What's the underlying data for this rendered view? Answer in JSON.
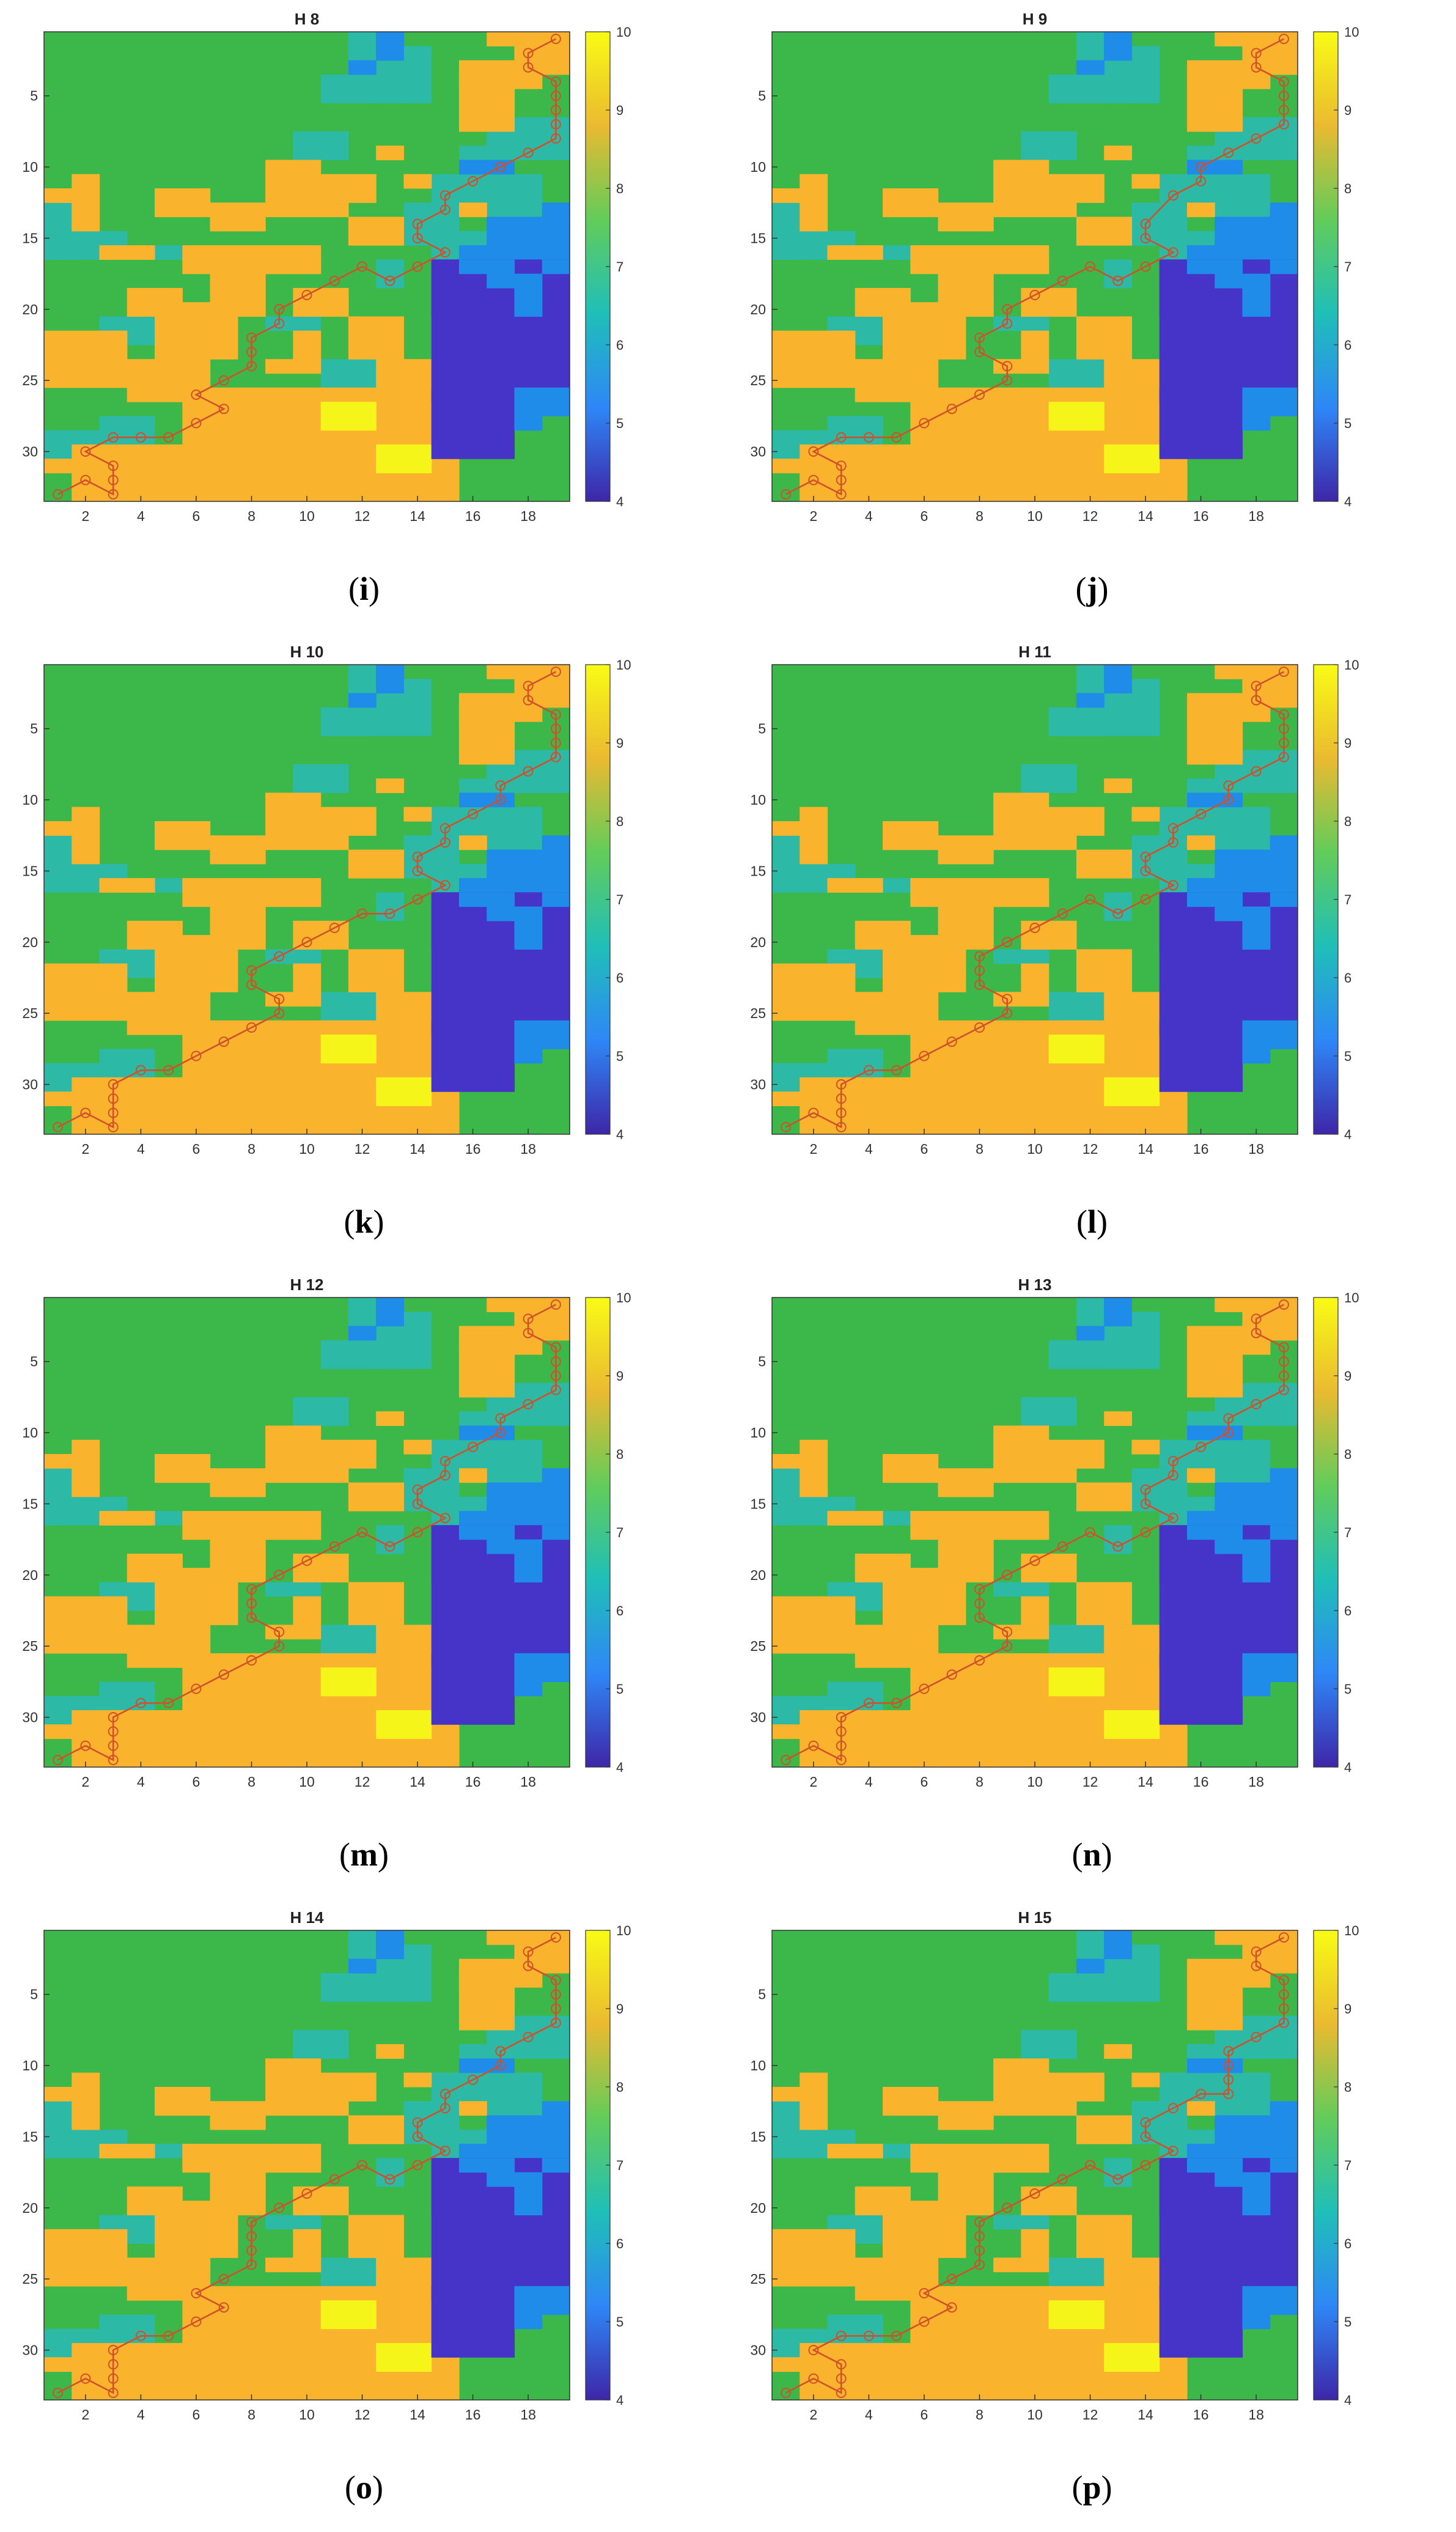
{
  "colors": {
    "green": "#3CB84A",
    "teal": "#2CB9A6",
    "orange": "#F9B32C",
    "yellow": "#F5F51A",
    "blue": "#1E8CE8",
    "indigo": "#4634C8",
    "path": "#D1502A",
    "colorbar_stops": [
      "#3E26A8",
      "#2E87F7",
      "#1FBFB8",
      "#62CC5A",
      "#EABA30",
      "#F9FB15"
    ]
  },
  "chart_data": [
    {
      "type": "heatmap",
      "title": "H 8",
      "caption_letter": "i",
      "x_ticks": [
        2,
        4,
        6,
        8,
        10,
        12,
        14,
        16,
        18
      ],
      "y_ticks": [
        5,
        10,
        15,
        20,
        25,
        30
      ],
      "xlim": [
        0.5,
        19.5
      ],
      "ylim": [
        0.5,
        33.5
      ],
      "colorbar": {
        "min": 4,
        "max": 10,
        "ticks": [
          4,
          5,
          6,
          7,
          8,
          9,
          10
        ]
      },
      "path": [
        [
          19,
          1
        ],
        [
          18,
          2
        ],
        [
          18,
          3
        ],
        [
          19,
          4
        ],
        [
          19,
          5
        ],
        [
          19,
          6
        ],
        [
          19,
          7
        ],
        [
          19,
          8
        ],
        [
          18,
          9
        ],
        [
          17,
          10
        ],
        [
          16,
          11
        ],
        [
          15,
          12
        ],
        [
          15,
          13
        ],
        [
          14,
          14
        ],
        [
          14,
          15
        ],
        [
          15,
          16
        ],
        [
          14,
          17
        ],
        [
          13,
          18
        ],
        [
          12,
          17
        ],
        [
          11,
          18
        ],
        [
          10,
          19
        ],
        [
          9,
          20
        ],
        [
          9,
          21
        ],
        [
          8,
          22
        ],
        [
          8,
          23
        ],
        [
          8,
          24
        ],
        [
          7,
          25
        ],
        [
          6,
          26
        ],
        [
          7,
          27
        ],
        [
          6,
          28
        ],
        [
          5,
          29
        ],
        [
          4,
          29
        ],
        [
          3,
          29
        ],
        [
          2,
          30
        ],
        [
          3,
          31
        ],
        [
          3,
          32
        ],
        [
          3,
          33
        ],
        [
          2,
          32
        ],
        [
          1,
          33
        ]
      ]
    },
    {
      "type": "heatmap",
      "title": "H 9",
      "caption_letter": "j",
      "x_ticks": [
        2,
        4,
        6,
        8,
        10,
        12,
        14,
        16,
        18
      ],
      "y_ticks": [
        5,
        10,
        15,
        20,
        25,
        30
      ],
      "xlim": [
        0.5,
        19.5
      ],
      "ylim": [
        0.5,
        33.5
      ],
      "colorbar": {
        "min": 4,
        "max": 10,
        "ticks": [
          4,
          5,
          6,
          7,
          8,
          9,
          10
        ]
      },
      "path": [
        [
          19,
          1
        ],
        [
          18,
          2
        ],
        [
          18,
          3
        ],
        [
          19,
          4
        ],
        [
          19,
          5
        ],
        [
          19,
          6
        ],
        [
          19,
          7
        ],
        [
          18,
          8
        ],
        [
          17,
          9
        ],
        [
          16,
          10
        ],
        [
          16,
          11
        ],
        [
          15,
          12
        ],
        [
          14,
          14
        ],
        [
          14,
          15
        ],
        [
          15,
          16
        ],
        [
          14,
          17
        ],
        [
          13,
          18
        ],
        [
          12,
          17
        ],
        [
          11,
          18
        ],
        [
          10,
          19
        ],
        [
          9,
          20
        ],
        [
          9,
          21
        ],
        [
          8,
          22
        ],
        [
          8,
          23
        ],
        [
          9,
          24
        ],
        [
          9,
          25
        ],
        [
          8,
          26
        ],
        [
          7,
          27
        ],
        [
          6,
          28
        ],
        [
          5,
          29
        ],
        [
          4,
          29
        ],
        [
          3,
          29
        ],
        [
          2,
          30
        ],
        [
          3,
          31
        ],
        [
          3,
          32
        ],
        [
          3,
          33
        ],
        [
          2,
          32
        ],
        [
          1,
          33
        ]
      ]
    },
    {
      "type": "heatmap",
      "title": "H 10",
      "caption_letter": "k",
      "x_ticks": [
        2,
        4,
        6,
        8,
        10,
        12,
        14,
        16,
        18
      ],
      "y_ticks": [
        5,
        10,
        15,
        20,
        25,
        30
      ],
      "xlim": [
        0.5,
        19.5
      ],
      "ylim": [
        0.5,
        33.5
      ],
      "colorbar": {
        "min": 4,
        "max": 10,
        "ticks": [
          4,
          5,
          6,
          7,
          8,
          9,
          10
        ]
      },
      "path": [
        [
          19,
          1
        ],
        [
          18,
          2
        ],
        [
          18,
          3
        ],
        [
          19,
          4
        ],
        [
          19,
          5
        ],
        [
          19,
          6
        ],
        [
          19,
          7
        ],
        [
          18,
          8
        ],
        [
          17,
          9
        ],
        [
          17,
          10
        ],
        [
          16,
          11
        ],
        [
          15,
          12
        ],
        [
          15,
          13
        ],
        [
          14,
          14
        ],
        [
          14,
          15
        ],
        [
          15,
          16
        ],
        [
          14,
          17
        ],
        [
          13,
          18
        ],
        [
          12,
          18
        ],
        [
          11,
          19
        ],
        [
          10,
          20
        ],
        [
          9,
          21
        ],
        [
          8,
          22
        ],
        [
          8,
          23
        ],
        [
          9,
          24
        ],
        [
          9,
          25
        ],
        [
          8,
          26
        ],
        [
          7,
          27
        ],
        [
          6,
          28
        ],
        [
          5,
          29
        ],
        [
          4,
          29
        ],
        [
          3,
          30
        ],
        [
          3,
          31
        ],
        [
          3,
          32
        ],
        [
          3,
          33
        ],
        [
          2,
          32
        ],
        [
          1,
          33
        ]
      ]
    },
    {
      "type": "heatmap",
      "title": "H 11",
      "caption_letter": "l",
      "x_ticks": [
        2,
        4,
        6,
        8,
        10,
        12,
        14,
        16,
        18
      ],
      "y_ticks": [
        5,
        10,
        15,
        20,
        25,
        30
      ],
      "xlim": [
        0.5,
        19.5
      ],
      "ylim": [
        0.5,
        33.5
      ],
      "colorbar": {
        "min": 4,
        "max": 10,
        "ticks": [
          4,
          5,
          6,
          7,
          8,
          9,
          10
        ]
      },
      "path": [
        [
          19,
          1
        ],
        [
          18,
          2
        ],
        [
          18,
          3
        ],
        [
          19,
          4
        ],
        [
          19,
          5
        ],
        [
          19,
          6
        ],
        [
          19,
          7
        ],
        [
          18,
          8
        ],
        [
          17,
          9
        ],
        [
          17,
          10
        ],
        [
          16,
          11
        ],
        [
          15,
          12
        ],
        [
          15,
          13
        ],
        [
          14,
          14
        ],
        [
          14,
          15
        ],
        [
          15,
          16
        ],
        [
          14,
          17
        ],
        [
          13,
          18
        ],
        [
          12,
          17
        ],
        [
          11,
          18
        ],
        [
          10,
          19
        ],
        [
          9,
          20
        ],
        [
          8,
          21
        ],
        [
          8,
          22
        ],
        [
          8,
          23
        ],
        [
          9,
          24
        ],
        [
          9,
          25
        ],
        [
          8,
          26
        ],
        [
          7,
          27
        ],
        [
          6,
          28
        ],
        [
          5,
          29
        ],
        [
          4,
          29
        ],
        [
          3,
          30
        ],
        [
          3,
          31
        ],
        [
          3,
          32
        ],
        [
          3,
          33
        ],
        [
          2,
          32
        ],
        [
          1,
          33
        ]
      ]
    },
    {
      "type": "heatmap",
      "title": "H 12",
      "caption_letter": "m",
      "x_ticks": [
        2,
        4,
        6,
        8,
        10,
        12,
        14,
        16,
        18
      ],
      "y_ticks": [
        5,
        10,
        15,
        20,
        25,
        30
      ],
      "xlim": [
        0.5,
        19.5
      ],
      "ylim": [
        0.5,
        33.5
      ],
      "colorbar": {
        "min": 4,
        "max": 10,
        "ticks": [
          4,
          5,
          6,
          7,
          8,
          9,
          10
        ]
      },
      "path": [
        [
          19,
          1
        ],
        [
          18,
          2
        ],
        [
          18,
          3
        ],
        [
          19,
          4
        ],
        [
          19,
          5
        ],
        [
          19,
          6
        ],
        [
          19,
          7
        ],
        [
          18,
          8
        ],
        [
          17,
          9
        ],
        [
          17,
          10
        ],
        [
          16,
          11
        ],
        [
          15,
          12
        ],
        [
          15,
          13
        ],
        [
          14,
          14
        ],
        [
          14,
          15
        ],
        [
          15,
          16
        ],
        [
          14,
          17
        ],
        [
          13,
          18
        ],
        [
          12,
          17
        ],
        [
          11,
          18
        ],
        [
          10,
          19
        ],
        [
          9,
          20
        ],
        [
          8,
          21
        ],
        [
          8,
          22
        ],
        [
          8,
          23
        ],
        [
          9,
          24
        ],
        [
          9,
          25
        ],
        [
          8,
          26
        ],
        [
          7,
          27
        ],
        [
          6,
          28
        ],
        [
          5,
          29
        ],
        [
          4,
          29
        ],
        [
          3,
          30
        ],
        [
          3,
          31
        ],
        [
          3,
          32
        ],
        [
          3,
          33
        ],
        [
          2,
          32
        ],
        [
          1,
          33
        ]
      ]
    },
    {
      "type": "heatmap",
      "title": "H 13",
      "caption_letter": "n",
      "x_ticks": [
        2,
        4,
        6,
        8,
        10,
        12,
        14,
        16,
        18
      ],
      "y_ticks": [
        5,
        10,
        15,
        20,
        25,
        30
      ],
      "xlim": [
        0.5,
        19.5
      ],
      "ylim": [
        0.5,
        33.5
      ],
      "colorbar": {
        "min": 4,
        "max": 10,
        "ticks": [
          4,
          5,
          6,
          7,
          8,
          9,
          10
        ]
      },
      "path": [
        [
          19,
          1
        ],
        [
          18,
          2
        ],
        [
          18,
          3
        ],
        [
          19,
          4
        ],
        [
          19,
          5
        ],
        [
          19,
          6
        ],
        [
          19,
          7
        ],
        [
          18,
          8
        ],
        [
          17,
          9
        ],
        [
          17,
          10
        ],
        [
          16,
          11
        ],
        [
          15,
          12
        ],
        [
          15,
          13
        ],
        [
          14,
          14
        ],
        [
          14,
          15
        ],
        [
          15,
          16
        ],
        [
          14,
          17
        ],
        [
          13,
          18
        ],
        [
          12,
          17
        ],
        [
          11,
          18
        ],
        [
          10,
          19
        ],
        [
          9,
          20
        ],
        [
          8,
          21
        ],
        [
          8,
          22
        ],
        [
          8,
          23
        ],
        [
          9,
          24
        ],
        [
          9,
          25
        ],
        [
          8,
          26
        ],
        [
          7,
          27
        ],
        [
          6,
          28
        ],
        [
          5,
          29
        ],
        [
          4,
          29
        ],
        [
          3,
          30
        ],
        [
          3,
          31
        ],
        [
          3,
          32
        ],
        [
          3,
          33
        ],
        [
          2,
          32
        ],
        [
          1,
          33
        ]
      ]
    },
    {
      "type": "heatmap",
      "title": "H 14",
      "caption_letter": "o",
      "x_ticks": [
        2,
        4,
        6,
        8,
        10,
        12,
        14,
        16,
        18
      ],
      "y_ticks": [
        5,
        10,
        15,
        20,
        25,
        30
      ],
      "xlim": [
        0.5,
        19.5
      ],
      "ylim": [
        0.5,
        33.5
      ],
      "colorbar": {
        "min": 4,
        "max": 10,
        "ticks": [
          4,
          5,
          6,
          7,
          8,
          9,
          10
        ]
      },
      "path": [
        [
          19,
          1
        ],
        [
          18,
          2
        ],
        [
          18,
          3
        ],
        [
          19,
          4
        ],
        [
          19,
          5
        ],
        [
          19,
          6
        ],
        [
          19,
          7
        ],
        [
          18,
          8
        ],
        [
          17,
          9
        ],
        [
          17,
          10
        ],
        [
          16,
          11
        ],
        [
          15,
          12
        ],
        [
          15,
          13
        ],
        [
          14,
          14
        ],
        [
          14,
          15
        ],
        [
          15,
          16
        ],
        [
          14,
          17
        ],
        [
          13,
          18
        ],
        [
          12,
          17
        ],
        [
          11,
          18
        ],
        [
          10,
          19
        ],
        [
          9,
          20
        ],
        [
          8,
          21
        ],
        [
          8,
          22
        ],
        [
          8,
          23
        ],
        [
          8,
          24
        ],
        [
          7,
          25
        ],
        [
          6,
          26
        ],
        [
          7,
          27
        ],
        [
          6,
          28
        ],
        [
          5,
          29
        ],
        [
          4,
          29
        ],
        [
          3,
          30
        ],
        [
          3,
          31
        ],
        [
          3,
          32
        ],
        [
          3,
          33
        ],
        [
          2,
          32
        ],
        [
          1,
          33
        ]
      ]
    },
    {
      "type": "heatmap",
      "title": "H 15",
      "caption_letter": "p",
      "x_ticks": [
        2,
        4,
        6,
        8,
        10,
        12,
        14,
        16,
        18
      ],
      "y_ticks": [
        5,
        10,
        15,
        20,
        25,
        30
      ],
      "xlim": [
        0.5,
        19.5
      ],
      "ylim": [
        0.5,
        33.5
      ],
      "colorbar": {
        "min": 4,
        "max": 10,
        "ticks": [
          4,
          5,
          6,
          7,
          8,
          9,
          10
        ]
      },
      "path": [
        [
          19,
          1
        ],
        [
          18,
          2
        ],
        [
          18,
          3
        ],
        [
          19,
          4
        ],
        [
          19,
          5
        ],
        [
          19,
          6
        ],
        [
          19,
          7
        ],
        [
          18,
          8
        ],
        [
          17,
          9
        ],
        [
          17,
          10
        ],
        [
          17,
          11
        ],
        [
          17,
          12
        ],
        [
          16,
          12
        ],
        [
          15,
          13
        ],
        [
          14,
          14
        ],
        [
          14,
          15
        ],
        [
          15,
          16
        ],
        [
          14,
          17
        ],
        [
          13,
          18
        ],
        [
          12,
          17
        ],
        [
          11,
          18
        ],
        [
          10,
          19
        ],
        [
          9,
          20
        ],
        [
          8,
          21
        ],
        [
          8,
          22
        ],
        [
          8,
          23
        ],
        [
          8,
          24
        ],
        [
          7,
          25
        ],
        [
          6,
          26
        ],
        [
          7,
          27
        ],
        [
          6,
          28
        ],
        [
          5,
          29
        ],
        [
          4,
          29
        ],
        [
          3,
          29
        ],
        [
          2,
          30
        ],
        [
          3,
          31
        ],
        [
          3,
          32
        ],
        [
          3,
          33
        ],
        [
          2,
          32
        ],
        [
          1,
          33
        ]
      ]
    }
  ]
}
